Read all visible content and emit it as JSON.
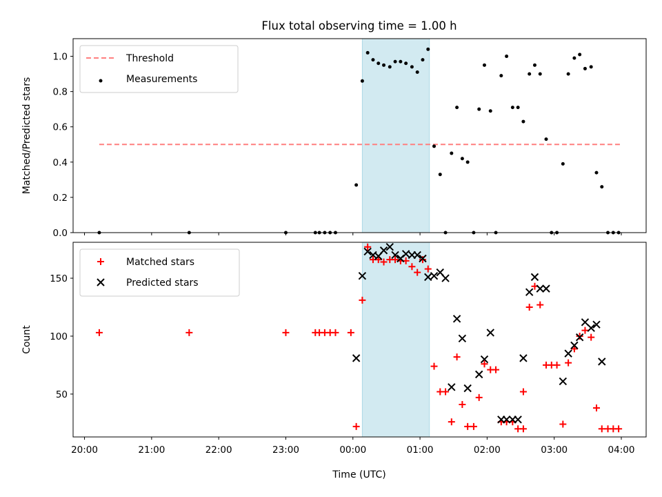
{
  "chart_data": {
    "title": "Flux total observing time = 1.00 h",
    "xlabel": "Time (UTC)",
    "x_unit": "hours after 20:00 UTC",
    "x_ticks": [
      {
        "value": 0,
        "label": "20:00"
      },
      {
        "value": 1,
        "label": "21:00"
      },
      {
        "value": 2,
        "label": "22:00"
      },
      {
        "value": 3,
        "label": "23:00"
      },
      {
        "value": 4,
        "label": "00:00"
      },
      {
        "value": 5,
        "label": "01:00"
      },
      {
        "value": 6,
        "label": "02:00"
      },
      {
        "value": 7,
        "label": "03:00"
      },
      {
        "value": 8,
        "label": "04:00"
      }
    ],
    "xlim": [
      -0.17,
      8.37
    ],
    "highlight_span": {
      "x0": 4.14,
      "x1": 5.14,
      "color": "#add8e6"
    },
    "panels": [
      {
        "type": "scatter",
        "ylabel": "Matched/Predicted stars",
        "ylim": [
          0,
          1.1
        ],
        "yticks": [
          {
            "value": 0.0,
            "label": "0.0"
          },
          {
            "value": 0.2,
            "label": "0.2"
          },
          {
            "value": 0.4,
            "label": "0.4"
          },
          {
            "value": 0.6,
            "label": "0.6"
          },
          {
            "value": 0.8,
            "label": "0.8"
          },
          {
            "value": 1.0,
            "label": "1.0"
          }
        ],
        "legend": {
          "placement": "upper left",
          "entries": [
            "Threshold",
            "Measurements"
          ]
        },
        "threshold": {
          "name": "Threshold",
          "y": 0.5,
          "x0": 0.22,
          "x1": 8.0,
          "color": "#ff7f7f",
          "style": "dashed"
        },
        "series": [
          {
            "name": "Measurements",
            "marker": "dot",
            "color": "#000000",
            "points": [
              [
                0.22,
                0.0
              ],
              [
                1.56,
                0.0
              ],
              [
                3.0,
                0.0
              ],
              [
                3.44,
                0.0
              ],
              [
                3.5,
                0.0
              ],
              [
                3.58,
                0.0
              ],
              [
                3.66,
                0.0
              ],
              [
                3.74,
                0.0
              ],
              [
                4.05,
                0.27
              ],
              [
                4.14,
                0.86
              ],
              [
                4.22,
                1.02
              ],
              [
                4.3,
                0.98
              ],
              [
                4.38,
                0.96
              ],
              [
                4.46,
                0.95
              ],
              [
                4.55,
                0.94
              ],
              [
                4.63,
                0.97
              ],
              [
                4.71,
                0.97
              ],
              [
                4.79,
                0.96
              ],
              [
                4.88,
                0.94
              ],
              [
                4.96,
                0.91
              ],
              [
                5.04,
                0.98
              ],
              [
                5.12,
                1.04
              ],
              [
                5.21,
                0.49
              ],
              [
                5.3,
                0.33
              ],
              [
                5.38,
                0.0
              ],
              [
                5.47,
                0.45
              ],
              [
                5.55,
                0.71
              ],
              [
                5.63,
                0.42
              ],
              [
                5.71,
                0.4
              ],
              [
                5.8,
                0.0
              ],
              [
                5.88,
                0.7
              ],
              [
                5.96,
                0.95
              ],
              [
                6.05,
                0.69
              ],
              [
                6.13,
                0.0
              ],
              [
                6.21,
                0.89
              ],
              [
                6.29,
                1.0
              ],
              [
                6.38,
                0.71
              ],
              [
                6.46,
                0.71
              ],
              [
                6.54,
                0.63
              ],
              [
                6.63,
                0.9
              ],
              [
                6.71,
                0.95
              ],
              [
                6.79,
                0.9
              ],
              [
                6.88,
                0.53
              ],
              [
                6.96,
                0.0
              ],
              [
                7.04,
                0.0
              ],
              [
                7.13,
                0.39
              ],
              [
                7.21,
                0.9
              ],
              [
                7.3,
                0.99
              ],
              [
                7.38,
                1.01
              ],
              [
                7.46,
                0.93
              ],
              [
                7.55,
                0.94
              ],
              [
                7.63,
                0.34
              ],
              [
                7.71,
                0.26
              ],
              [
                7.8,
                0.0
              ],
              [
                7.88,
                0.0
              ],
              [
                7.96,
                0.0
              ]
            ]
          }
        ]
      },
      {
        "type": "scatter",
        "ylabel": "Count",
        "ylim": [
          13,
          181
        ],
        "yticks": [
          {
            "value": 50,
            "label": "50"
          },
          {
            "value": 100,
            "label": "100"
          },
          {
            "value": 150,
            "label": "150"
          }
        ],
        "legend": {
          "placement": "upper left",
          "entries": [
            "Matched stars",
            "Predicted stars"
          ]
        },
        "series": [
          {
            "name": "Matched stars",
            "marker": "plus",
            "color": "#ff0000",
            "points": [
              [
                0.22,
                103
              ],
              [
                1.56,
                103
              ],
              [
                3.0,
                103
              ],
              [
                3.44,
                103
              ],
              [
                3.5,
                103
              ],
              [
                3.58,
                103
              ],
              [
                3.66,
                103
              ],
              [
                3.74,
                103
              ],
              [
                3.97,
                103
              ],
              [
                4.05,
                22
              ],
              [
                4.14,
                131
              ],
              [
                4.22,
                177
              ],
              [
                4.3,
                166
              ],
              [
                4.38,
                166
              ],
              [
                4.46,
                164
              ],
              [
                4.55,
                166
              ],
              [
                4.63,
                166
              ],
              [
                4.71,
                165
              ],
              [
                4.79,
                165
              ],
              [
                4.88,
                160
              ],
              [
                4.96,
                155
              ],
              [
                5.04,
                166
              ],
              [
                5.12,
                158
              ],
              [
                5.21,
                74
              ],
              [
                5.3,
                52
              ],
              [
                5.38,
                52
              ],
              [
                5.47,
                26
              ],
              [
                5.55,
                82
              ],
              [
                5.63,
                41
              ],
              [
                5.71,
                22
              ],
              [
                5.8,
                22
              ],
              [
                5.88,
                47
              ],
              [
                5.96,
                76
              ],
              [
                6.05,
                71
              ],
              [
                6.13,
                71
              ],
              [
                6.21,
                26
              ],
              [
                6.29,
                26
              ],
              [
                6.38,
                26
              ],
              [
                6.46,
                20
              ],
              [
                6.54,
                20
              ],
              [
                6.54,
                52
              ],
              [
                6.63,
                125
              ],
              [
                6.71,
                143
              ],
              [
                6.79,
                127
              ],
              [
                6.88,
                75
              ],
              [
                6.96,
                75
              ],
              [
                7.04,
                75
              ],
              [
                7.13,
                24
              ],
              [
                7.21,
                77
              ],
              [
                7.3,
                89
              ],
              [
                7.38,
                100
              ],
              [
                7.46,
                105
              ],
              [
                7.55,
                99
              ],
              [
                7.63,
                38
              ],
              [
                7.71,
                20
              ],
              [
                7.8,
                20
              ],
              [
                7.88,
                20
              ],
              [
                7.96,
                20
              ]
            ]
          },
          {
            "name": "Predicted stars",
            "marker": "x",
            "color": "#000000",
            "points": [
              [
                4.05,
                81
              ],
              [
                4.14,
                152
              ],
              [
                4.22,
                173
              ],
              [
                4.3,
                170
              ],
              [
                4.38,
                169
              ],
              [
                4.46,
                174
              ],
              [
                4.55,
                177
              ],
              [
                4.63,
                170
              ],
              [
                4.71,
                167
              ],
              [
                4.79,
                171
              ],
              [
                4.88,
                170
              ],
              [
                4.96,
                170
              ],
              [
                5.04,
                167
              ],
              [
                5.12,
                151
              ],
              [
                5.21,
                152
              ],
              [
                5.3,
                155
              ],
              [
                5.38,
                150
              ],
              [
                5.47,
                56
              ],
              [
                5.55,
                115
              ],
              [
                5.63,
                98
              ],
              [
                5.71,
                55
              ],
              [
                5.88,
                67
              ],
              [
                5.96,
                80
              ],
              [
                6.05,
                103
              ],
              [
                6.21,
                28
              ],
              [
                6.29,
                28
              ],
              [
                6.38,
                28
              ],
              [
                6.46,
                28
              ],
              [
                6.54,
                81
              ],
              [
                6.63,
                138
              ],
              [
                6.71,
                151
              ],
              [
                6.79,
                141
              ],
              [
                6.88,
                141
              ],
              [
                7.13,
                61
              ],
              [
                7.21,
                85
              ],
              [
                7.3,
                92
              ],
              [
                7.38,
                99
              ],
              [
                7.46,
                112
              ],
              [
                7.55,
                107
              ],
              [
                7.63,
                110
              ],
              [
                7.71,
                78
              ]
            ]
          }
        ]
      }
    ]
  }
}
